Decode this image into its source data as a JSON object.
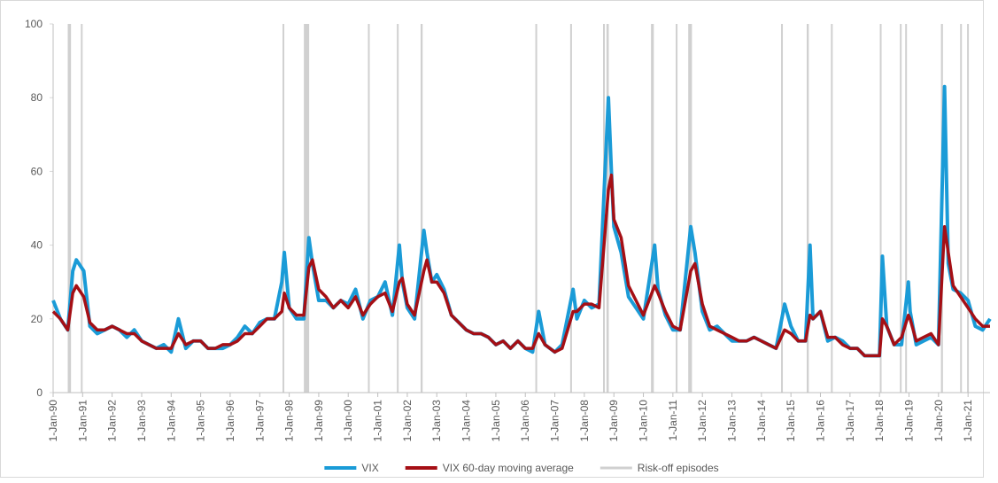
{
  "chart_data": {
    "type": "line",
    "x": [
      "1990-01-01",
      "1990-04-01",
      "1990-07-01",
      "1990-09-01",
      "1990-10-15",
      "1991-01-15",
      "1991-04-01",
      "1991-07-01",
      "1991-10-01",
      "1992-01-01",
      "1992-04-01",
      "1992-07-01",
      "1992-10-01",
      "1993-01-01",
      "1993-04-01",
      "1993-07-01",
      "1993-10-01",
      "1994-01-01",
      "1994-04-01",
      "1994-07-01",
      "1994-10-01",
      "1995-01-01",
      "1995-04-01",
      "1995-07-01",
      "1995-10-01",
      "1996-01-01",
      "1996-04-01",
      "1996-07-01",
      "1996-10-01",
      "1997-01-01",
      "1997-04-01",
      "1997-07-01",
      "1997-10-01",
      "1997-11-01",
      "1998-01-01",
      "1998-04-01",
      "1998-07-01",
      "1998-09-01",
      "1998-10-15",
      "1999-01-01",
      "1999-04-01",
      "1999-07-01",
      "1999-10-01",
      "2000-01-01",
      "2000-04-01",
      "2000-07-01",
      "2000-10-01",
      "2001-01-01",
      "2001-04-01",
      "2001-07-01",
      "2001-09-25",
      "2001-11-01",
      "2002-01-01",
      "2002-04-01",
      "2002-07-25",
      "2002-09-01",
      "2002-11-01",
      "2003-01-01",
      "2003-04-01",
      "2003-07-01",
      "2003-10-01",
      "2004-01-01",
      "2004-04-01",
      "2004-07-01",
      "2004-10-01",
      "2005-01-01",
      "2005-04-01",
      "2005-07-01",
      "2005-10-01",
      "2006-01-01",
      "2006-04-01",
      "2006-06-15",
      "2006-09-01",
      "2007-01-01",
      "2007-04-01",
      "2007-08-15",
      "2007-10-01",
      "2008-01-01",
      "2008-04-01",
      "2008-07-01",
      "2008-10-25",
      "2008-12-01",
      "2009-01-01",
      "2009-04-01",
      "2009-07-01",
      "2009-10-01",
      "2010-01-01",
      "2010-05-20",
      "2010-07-01",
      "2010-10-01",
      "2011-01-01",
      "2011-04-01",
      "2011-08-10",
      "2011-10-01",
      "2012-01-01",
      "2012-04-01",
      "2012-07-01",
      "2012-10-01",
      "2013-01-01",
      "2013-04-01",
      "2013-07-01",
      "2013-10-01",
      "2014-01-01",
      "2014-04-01",
      "2014-07-01",
      "2014-10-15",
      "2015-01-01",
      "2015-04-01",
      "2015-07-01",
      "2015-08-25",
      "2015-10-01",
      "2016-01-01",
      "2016-04-01",
      "2016-07-01",
      "2016-10-01",
      "2017-01-01",
      "2017-04-01",
      "2017-07-01",
      "2017-10-01",
      "2018-01-01",
      "2018-02-06",
      "2018-04-01",
      "2018-07-01",
      "2018-10-01",
      "2018-12-24",
      "2019-01-15",
      "2019-04-01",
      "2019-07-01",
      "2019-10-01",
      "2020-01-01",
      "2020-03-16",
      "2020-05-01",
      "2020-07-01",
      "2020-10-01",
      "2021-01-01",
      "2021-04-01",
      "2021-07-01",
      "2021-09-30"
    ],
    "series": [
      {
        "name": "VIX",
        "color": "#1a9bd7",
        "values": [
          25,
          20,
          17,
          33,
          36,
          33,
          18,
          16,
          17,
          18,
          17,
          15,
          17,
          14,
          13,
          12,
          13,
          11,
          20,
          12,
          14,
          14,
          12,
          12,
          12,
          13,
          15,
          18,
          16,
          19,
          20,
          20,
          30,
          38,
          23,
          20,
          20,
          42,
          35,
          25,
          25,
          23,
          25,
          24,
          28,
          20,
          25,
          26,
          30,
          21,
          40,
          30,
          23,
          20,
          44,
          38,
          30,
          32,
          28,
          21,
          19,
          17,
          16,
          16,
          15,
          13,
          14,
          12,
          14,
          12,
          11,
          22,
          13,
          11,
          13,
          28,
          20,
          25,
          23,
          24,
          80,
          60,
          45,
          38,
          26,
          23,
          20,
          40,
          28,
          21,
          17,
          17,
          45,
          38,
          22,
          17,
          18,
          16,
          14,
          14,
          14,
          15,
          14,
          13,
          12,
          24,
          18,
          14,
          14,
          40,
          20,
          22,
          14,
          15,
          14,
          12,
          12,
          10,
          10,
          10,
          37,
          18,
          13,
          13,
          30,
          22,
          13,
          14,
          15,
          13,
          83,
          35,
          28,
          27,
          25,
          18,
          17,
          20
        ]
      },
      {
        "name": "VIX 60-day moving average",
        "color": "#a50f15",
        "values": [
          22,
          20,
          17,
          27,
          29,
          26,
          19,
          17,
          17,
          18,
          17,
          16,
          16,
          14,
          13,
          12,
          12,
          12,
          16,
          13,
          14,
          14,
          12,
          12,
          13,
          13,
          14,
          16,
          16,
          18,
          20,
          20,
          22,
          27,
          23,
          21,
          21,
          34,
          36,
          28,
          26,
          23,
          25,
          23,
          26,
          21,
          24,
          26,
          27,
          22,
          30,
          31,
          24,
          21,
          33,
          36,
          30,
          30,
          27,
          21,
          19,
          17,
          16,
          16,
          15,
          13,
          14,
          12,
          14,
          12,
          12,
          16,
          13,
          11,
          12,
          22,
          22,
          24,
          24,
          23,
          55,
          59,
          47,
          42,
          29,
          25,
          21,
          29,
          27,
          22,
          18,
          17,
          33,
          35,
          24,
          18,
          17,
          16,
          15,
          14,
          14,
          15,
          14,
          13,
          12,
          17,
          16,
          14,
          14,
          21,
          20,
          22,
          15,
          15,
          13,
          12,
          12,
          10,
          10,
          10,
          20,
          18,
          13,
          15,
          21,
          20,
          14,
          15,
          16,
          13,
          45,
          38,
          29,
          26,
          23,
          20,
          18,
          18
        ]
      }
    ],
    "episodes": {
      "name": "Risk-off episodes",
      "color": "#d0d0d0",
      "periods": [
        {
          "start": "1990-07-01",
          "end": "1990-08-10"
        },
        {
          "start": "1990-12-10",
          "end": "1990-12-25"
        },
        {
          "start": "1997-10-10",
          "end": "1997-10-28"
        },
        {
          "start": "1998-07-01",
          "end": "1998-09-05"
        },
        {
          "start": "2000-09-01",
          "end": "2000-09-15"
        },
        {
          "start": "2001-08-25",
          "end": "2001-09-10"
        },
        {
          "start": "2002-06-15",
          "end": "2002-07-10"
        },
        {
          "start": "2006-05-05",
          "end": "2006-05-20"
        },
        {
          "start": "2007-07-10",
          "end": "2007-07-25"
        },
        {
          "start": "2008-08-20",
          "end": "2008-09-01"
        },
        {
          "start": "2008-10-01",
          "end": "2008-10-30"
        },
        {
          "start": "2010-04-05",
          "end": "2010-05-10"
        },
        {
          "start": "2011-02-05",
          "end": "2011-02-20"
        },
        {
          "start": "2011-07-10",
          "end": "2011-08-25"
        },
        {
          "start": "2014-09-01",
          "end": "2014-09-15"
        },
        {
          "start": "2015-07-15",
          "end": "2015-08-10"
        },
        {
          "start": "2016-05-10",
          "end": "2016-05-25"
        },
        {
          "start": "2018-01-05",
          "end": "2018-01-20"
        },
        {
          "start": "2018-09-10",
          "end": "2018-09-25"
        },
        {
          "start": "2018-11-15",
          "end": "2018-11-30"
        },
        {
          "start": "2020-02-01",
          "end": "2020-02-25"
        },
        {
          "start": "2020-09-25",
          "end": "2020-10-10"
        },
        {
          "start": "2020-12-20",
          "end": "2021-01-03"
        }
      ]
    },
    "xlim": [
      "1990-01-01",
      "2021-09-30"
    ],
    "xticks": [
      {
        "value": "1990-01-01",
        "label": "1-Jan-90"
      },
      {
        "value": "1991-01-01",
        "label": "1-Jan-91"
      },
      {
        "value": "1992-01-01",
        "label": "1-Jan-92"
      },
      {
        "value": "1993-01-01",
        "label": "1-Jan-93"
      },
      {
        "value": "1994-01-01",
        "label": "1-Jan-94"
      },
      {
        "value": "1995-01-01",
        "label": "1-Jan-95"
      },
      {
        "value": "1996-01-01",
        "label": "1-Jan-96"
      },
      {
        "value": "1997-01-01",
        "label": "1-Jan-97"
      },
      {
        "value": "1998-01-01",
        "label": "1-Jan-98"
      },
      {
        "value": "1999-01-01",
        "label": "1-Jan-99"
      },
      {
        "value": "2000-01-01",
        "label": "1-Jan-00"
      },
      {
        "value": "2001-01-01",
        "label": "1-Jan-01"
      },
      {
        "value": "2002-01-01",
        "label": "1-Jan-02"
      },
      {
        "value": "2003-01-01",
        "label": "1-Jan-03"
      },
      {
        "value": "2004-01-01",
        "label": "1-Jan-04"
      },
      {
        "value": "2005-01-01",
        "label": "1-Jan-05"
      },
      {
        "value": "2006-01-01",
        "label": "1-Jan-06"
      },
      {
        "value": "2007-01-01",
        "label": "1-Jan-07"
      },
      {
        "value": "2008-01-01",
        "label": "1-Jan-08"
      },
      {
        "value": "2009-01-01",
        "label": "1-Jan-09"
      },
      {
        "value": "2010-01-01",
        "label": "1-Jan-10"
      },
      {
        "value": "2011-01-01",
        "label": "1-Jan-11"
      },
      {
        "value": "2012-01-01",
        "label": "1-Jan-12"
      },
      {
        "value": "2013-01-01",
        "label": "1-Jan-13"
      },
      {
        "value": "2014-01-01",
        "label": "1-Jan-14"
      },
      {
        "value": "2015-01-01",
        "label": "1-Jan-15"
      },
      {
        "value": "2016-01-01",
        "label": "1-Jan-16"
      },
      {
        "value": "2017-01-01",
        "label": "1-Jan-17"
      },
      {
        "value": "2018-01-01",
        "label": "1-Jan-18"
      },
      {
        "value": "2019-01-01",
        "label": "1-Jan-19"
      },
      {
        "value": "2020-01-01",
        "label": "1-Jan-20"
      },
      {
        "value": "2021-01-01",
        "label": "1-Jan-21"
      }
    ],
    "ylim": [
      0,
      100
    ],
    "yticks": [
      0,
      20,
      40,
      60,
      80,
      100
    ],
    "grid": false,
    "legend": "bottom"
  }
}
